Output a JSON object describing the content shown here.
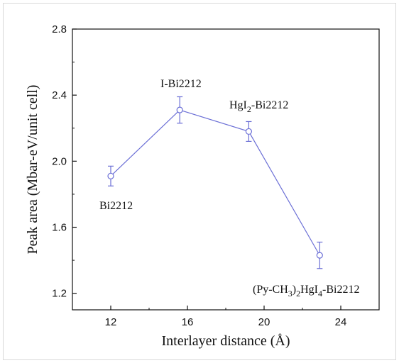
{
  "chart_data": {
    "type": "line",
    "xlabel": "Interlayer distance (Å)",
    "ylabel": "Peak area (Mbar-eV/unit cell)",
    "xlim": [
      10,
      26
    ],
    "ylim": [
      1.1,
      2.8
    ],
    "x_ticks": [
      "12",
      "16",
      "20",
      "24"
    ],
    "y_ticks": [
      "1.2",
      "1.6",
      "2.0",
      "2.4",
      "2.8"
    ],
    "grid": false,
    "marker": "open-circle",
    "color": "#6b6fd6",
    "points": [
      {
        "x": 12.0,
        "y": 1.91,
        "err": 0.06
      },
      {
        "x": 15.6,
        "y": 2.31,
        "err": 0.08
      },
      {
        "x": 19.2,
        "y": 2.18,
        "err": 0.06
      },
      {
        "x": 22.9,
        "y": 1.43,
        "err": 0.08
      }
    ],
    "annotations": {
      "bi2212": "Bi2212",
      "i_bi2212": "I-Bi2212",
      "hgi2_prefix": "HgI",
      "hgi2_sub": "2",
      "hgi2_suffix": "-Bi2212",
      "py_prefix": "(Py-CH",
      "py_sub1": "3",
      "py_mid": ")",
      "py_sub2": "2",
      "py_hg": "HgI",
      "py_sub3": "4",
      "py_suffix": "-Bi2212"
    }
  }
}
